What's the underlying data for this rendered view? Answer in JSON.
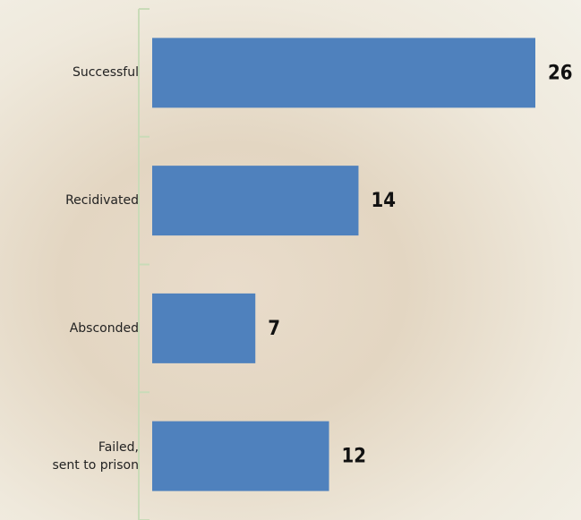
{
  "chart_data": {
    "type": "bar",
    "orientation": "horizontal",
    "categories": [
      "Successful",
      "Recidivated",
      "Absconded",
      "Failed,\nsent to prison"
    ],
    "values": [
      26,
      14,
      7,
      12
    ],
    "color": "#4f81bd"
  }
}
